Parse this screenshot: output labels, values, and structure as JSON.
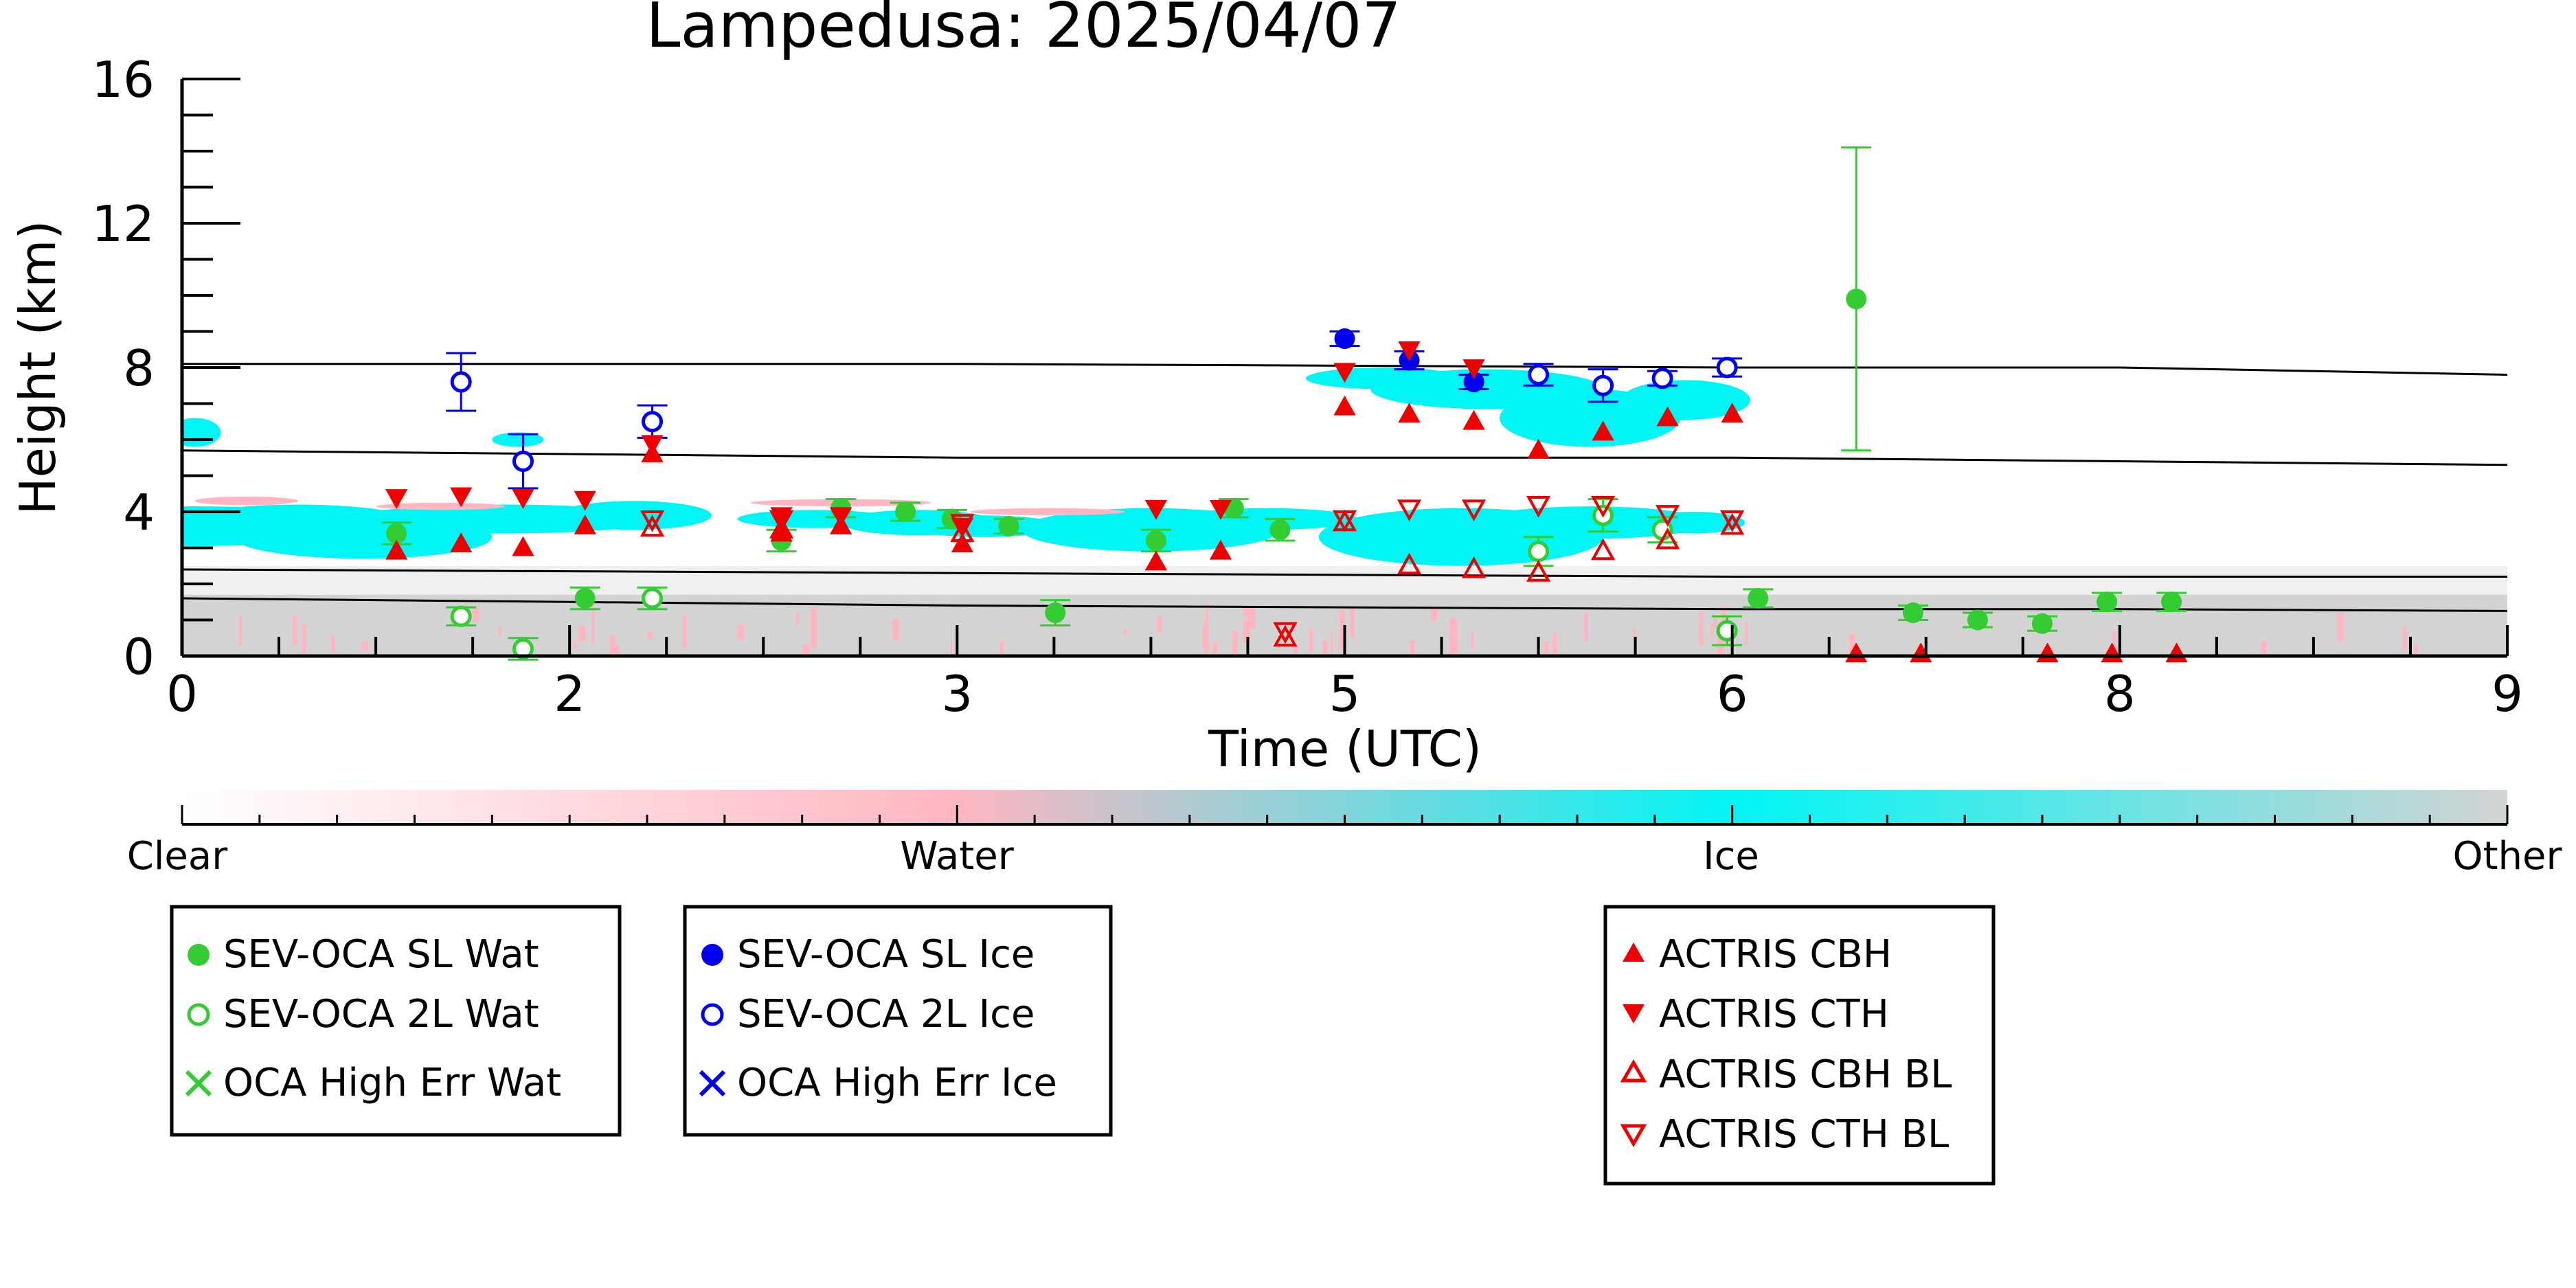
{
  "chart_data": {
    "type": "scatter",
    "title": "Lampedusa: 2025/04/07",
    "xlabel": "Time (UTC)",
    "ylabel": "Height (km)",
    "xlim": [
      0,
      9
    ],
    "ylim": [
      0,
      16
    ],
    "x_ticks": [
      "0",
      "2",
      "3",
      "5",
      "6",
      "8",
      "9"
    ],
    "x_tick_values": [
      0,
      1.5,
      3,
      4.5,
      6,
      7.5,
      9
    ],
    "y_ticks": [
      "0",
      "4",
      "8",
      "12",
      "16"
    ],
    "y_tick_values": [
      0,
      4,
      8,
      12,
      16
    ],
    "grid": false,
    "colorbar": {
      "labels": [
        "Clear",
        "Water",
        "Ice",
        "Other"
      ],
      "colors": [
        "#ffffff",
        "#ffb6c1",
        "#00f5f5",
        "#d3d3d3"
      ]
    },
    "model_lines": [
      {
        "x": [
          0,
          1.5,
          3,
          4.5,
          6,
          7.5,
          9
        ],
        "y": [
          8.1,
          8.1,
          8.1,
          8.05,
          8.0,
          8.0,
          7.8
        ]
      },
      {
        "x": [
          0,
          1.5,
          3,
          4.5,
          6,
          7.5,
          9
        ],
        "y": [
          5.7,
          5.6,
          5.5,
          5.5,
          5.5,
          5.4,
          5.3
        ]
      },
      {
        "x": [
          0,
          1.5,
          3,
          4.5,
          6,
          7.5,
          9
        ],
        "y": [
          2.4,
          2.35,
          2.3,
          2.25,
          2.2,
          2.2,
          2.2
        ]
      },
      {
        "x": [
          0,
          1.5,
          3,
          4.5,
          6,
          7.5,
          9
        ],
        "y": [
          1.6,
          1.5,
          1.4,
          1.35,
          1.3,
          1.3,
          1.25
        ]
      }
    ],
    "series": [
      {
        "name": "SEV-OCA SL Wat",
        "color": "#33cc33",
        "marker": "filled-circle",
        "x": [
          0.83,
          1.56,
          2.32,
          2.55,
          2.8,
          2.98,
          3.2,
          3.38,
          3.77,
          4.07,
          4.25,
          6.1,
          6.48,
          6.7,
          6.95,
          7.2,
          7.45,
          7.7
        ],
        "y": [
          3.4,
          1.6,
          3.2,
          4.1,
          4.0,
          3.8,
          3.6,
          1.2,
          3.2,
          4.1,
          3.5,
          1.6,
          9.9,
          1.2,
          1.0,
          0.9,
          1.5,
          1.5
        ],
        "err": [
          0.3,
          0.3,
          0.3,
          0.25,
          0.25,
          0.25,
          0.2,
          0.35,
          0.3,
          0.25,
          0.3,
          0.25,
          4.2,
          0.2,
          0.2,
          0.2,
          0.25,
          0.25
        ]
      },
      {
        "name": "SEV-OCA 2L Wat",
        "color": "#33cc33",
        "marker": "open-circle",
        "x": [
          1.08,
          1.32,
          1.82,
          5.25,
          5.5,
          5.73,
          5.98
        ],
        "y": [
          1.1,
          0.2,
          1.6,
          2.9,
          3.9,
          3.5,
          0.7
        ],
        "err": [
          0.25,
          0.3,
          0.3,
          0.4,
          0.45,
          0.35,
          0.4
        ]
      },
      {
        "name": "OCA High Err Wat",
        "color": "#33cc33",
        "marker": "x",
        "x": [],
        "y": []
      },
      {
        "name": "SEV-OCA SL Ice",
        "color": "#0000ee",
        "marker": "filled-circle",
        "x": [
          4.5,
          4.75,
          5.0
        ],
        "y": [
          8.8,
          8.2,
          7.6
        ],
        "err": [
          0.2,
          0.25,
          0.2
        ]
      },
      {
        "name": "SEV-OCA 2L Ice",
        "color": "#0000ee",
        "marker": "open-circle",
        "x": [
          1.08,
          1.32,
          1.82,
          5.25,
          5.5,
          5.73,
          5.98
        ],
        "y": [
          7.6,
          5.4,
          6.5,
          7.8,
          7.5,
          7.7,
          8.0
        ],
        "err": [
          0.8,
          0.75,
          0.45,
          0.3,
          0.45,
          0.2,
          0.25
        ]
      },
      {
        "name": "OCA High Err Ice",
        "color": "#0000ee",
        "marker": "x",
        "x": [],
        "y": []
      },
      {
        "name": "ACTRIS CBH",
        "color": "#ee0000",
        "marker": "filled-triangle-up",
        "x": [
          0.83,
          1.08,
          1.32,
          1.56,
          1.82,
          2.32,
          2.55,
          3.02,
          3.77,
          4.02,
          4.5,
          4.75,
          5.0,
          5.25,
          5.5,
          5.75,
          6.0,
          6.48,
          6.73,
          7.22,
          7.47,
          7.72
        ],
        "y": [
          2.9,
          3.1,
          3.0,
          3.6,
          5.6,
          3.4,
          3.6,
          3.1,
          2.6,
          2.9,
          6.9,
          6.7,
          6.5,
          5.7,
          6.2,
          6.6,
          6.7,
          0.05,
          0.05,
          0.05,
          0.05,
          0.05
        ]
      },
      {
        "name": "ACTRIS CTH",
        "color": "#ee0000",
        "marker": "filled-triangle-down",
        "x": [
          0.83,
          1.08,
          1.32,
          1.56,
          1.82,
          2.32,
          2.55,
          3.02,
          3.77,
          4.02,
          4.5,
          4.75,
          5.0
        ],
        "y": [
          4.4,
          4.45,
          4.4,
          4.35,
          5.9,
          3.9,
          3.9,
          3.6,
          4.1,
          4.1,
          7.9,
          8.5,
          8.0
        ]
      },
      {
        "name": "ACTRIS CBH BL",
        "color": "#ee0000",
        "marker": "open-triangle-up",
        "x": [
          1.82,
          2.32,
          3.02,
          4.27,
          4.5,
          4.75,
          5.0,
          5.25,
          5.5,
          5.75,
          6.0
        ],
        "y": [
          3.55,
          3.5,
          3.4,
          0.5,
          3.7,
          2.5,
          2.4,
          2.3,
          2.9,
          3.2,
          3.6
        ],
        "open": true
      },
      {
        "name": "ACTRIS CTH BL",
        "color": "#ee0000",
        "marker": "open-triangle-down",
        "x": [
          1.82,
          2.32,
          3.02,
          4.27,
          4.5,
          4.75,
          5.0,
          5.25,
          5.5,
          5.75,
          6.0
        ],
        "y": [
          3.8,
          3.8,
          3.7,
          0.7,
          3.8,
          4.1,
          4.1,
          4.2,
          4.2,
          3.95,
          3.8
        ]
      }
    ],
    "legend": [
      [
        "SEV-OCA SL Wat",
        "SEV-OCA 2L Wat",
        "OCA High Err Wat"
      ],
      [
        "SEV-OCA SL Ice",
        "SEV-OCA 2L Ice",
        "OCA High Err Ice"
      ],
      [
        "ACTRIS CBH",
        "ACTRIS CTH",
        "ACTRIS CBH BL",
        "ACTRIS CTH BL"
      ]
    ],
    "legend_placement": "bottom"
  }
}
